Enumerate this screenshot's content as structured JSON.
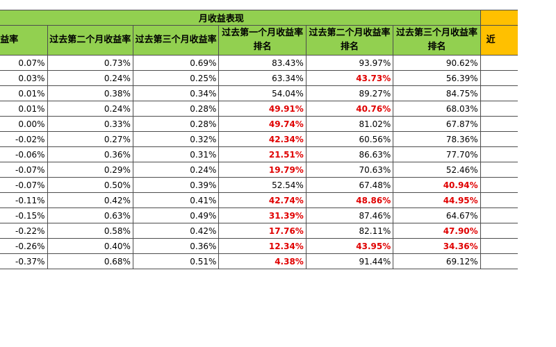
{
  "title": "月收益表现",
  "headers": [
    "收益率",
    "过去第二个月收益率",
    "过去第三个月收益率",
    "过去第一个月收益率排名",
    "过去第二个月收益率排名",
    "过去第三个月收益率排名"
  ],
  "extra_header": "近",
  "rows": [
    {
      "cells": [
        "0.07%",
        "0.73%",
        "0.69%",
        "83.43%",
        "93.97%",
        "90.62%"
      ],
      "red": [
        false,
        false,
        false,
        false,
        false,
        false
      ]
    },
    {
      "cells": [
        "0.03%",
        "0.24%",
        "0.25%",
        "63.34%",
        "43.73%",
        "56.39%"
      ],
      "red": [
        false,
        false,
        false,
        false,
        true,
        false
      ]
    },
    {
      "cells": [
        "0.01%",
        "0.38%",
        "0.34%",
        "54.04%",
        "89.27%",
        "84.75%"
      ],
      "red": [
        false,
        false,
        false,
        false,
        false,
        false
      ]
    },
    {
      "cells": [
        "0.01%",
        "0.24%",
        "0.28%",
        "49.91%",
        "40.76%",
        "68.03%"
      ],
      "red": [
        false,
        false,
        false,
        true,
        true,
        false
      ]
    },
    {
      "cells": [
        "0.00%",
        "0.33%",
        "0.28%",
        "49.74%",
        "81.02%",
        "67.87%"
      ],
      "red": [
        false,
        false,
        false,
        true,
        false,
        false
      ]
    },
    {
      "cells": [
        "-0.02%",
        "0.27%",
        "0.32%",
        "42.34%",
        "60.56%",
        "78.36%"
      ],
      "red": [
        false,
        false,
        false,
        true,
        false,
        false
      ]
    },
    {
      "cells": [
        "-0.06%",
        "0.36%",
        "0.31%",
        "21.51%",
        "86.63%",
        "77.70%"
      ],
      "red": [
        false,
        false,
        false,
        true,
        false,
        false
      ]
    },
    {
      "cells": [
        "-0.07%",
        "0.29%",
        "0.24%",
        "19.79%",
        "70.63%",
        "52.46%"
      ],
      "red": [
        false,
        false,
        false,
        true,
        false,
        false
      ]
    },
    {
      "cells": [
        "-0.07%",
        "0.50%",
        "0.39%",
        "52.54%",
        "67.48%",
        "40.94%"
      ],
      "red": [
        false,
        false,
        false,
        false,
        false,
        true
      ]
    },
    {
      "cells": [
        "-0.11%",
        "0.42%",
        "0.41%",
        "42.74%",
        "48.86%",
        "44.95%"
      ],
      "red": [
        false,
        false,
        false,
        true,
        true,
        true
      ]
    },
    {
      "cells": [
        "-0.15%",
        "0.63%",
        "0.49%",
        "31.39%",
        "87.46%",
        "64.67%"
      ],
      "red": [
        false,
        false,
        false,
        true,
        false,
        false
      ]
    },
    {
      "cells": [
        "-0.22%",
        "0.58%",
        "0.42%",
        "17.76%",
        "82.11%",
        "47.90%"
      ],
      "red": [
        false,
        false,
        false,
        true,
        false,
        true
      ]
    },
    {
      "cells": [
        "-0.26%",
        "0.40%",
        "0.36%",
        "12.34%",
        "43.95%",
        "34.36%"
      ],
      "red": [
        false,
        false,
        false,
        true,
        true,
        true
      ]
    },
    {
      "cells": [
        "-0.37%",
        "0.68%",
        "0.51%",
        "4.38%",
        "91.44%",
        "69.12%"
      ],
      "red": [
        false,
        false,
        false,
        true,
        false,
        false
      ]
    }
  ]
}
